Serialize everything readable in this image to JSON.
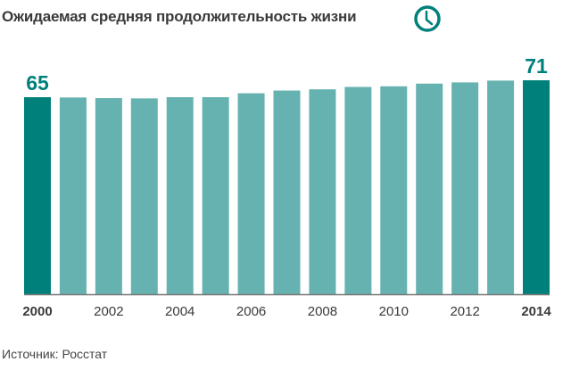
{
  "chart_data": {
    "type": "bar",
    "title": "Ожидаемая средняя продолжительность жизни",
    "categories": [
      "2000",
      "2001",
      "2002",
      "2003",
      "2004",
      "2005",
      "2006",
      "2007",
      "2008",
      "2009",
      "2010",
      "2011",
      "2012",
      "2013",
      "2014"
    ],
    "values": [
      65.3,
      65.2,
      65.0,
      64.9,
      65.3,
      65.3,
      66.6,
      67.5,
      67.9,
      68.7,
      68.9,
      69.8,
      70.2,
      70.8,
      70.9
    ],
    "tick_labels": [
      "2000",
      "2002",
      "2004",
      "2006",
      "2008",
      "2010",
      "2012",
      "2014"
    ],
    "data_labels": [
      {
        "category": "2000",
        "text": "65"
      },
      {
        "category": "2014",
        "text": "71"
      }
    ],
    "highlighted": [
      "2000",
      "2014"
    ],
    "xlabel": "",
    "ylabel": "",
    "ylim": [
      0,
      71
    ],
    "grid": false,
    "source": "Источник: Росстат",
    "icon": "clock-icon",
    "colors": {
      "highlight": "#00807a",
      "bar": "#66b2b0",
      "text": "#3a3a3a",
      "axis": "#777777"
    }
  }
}
